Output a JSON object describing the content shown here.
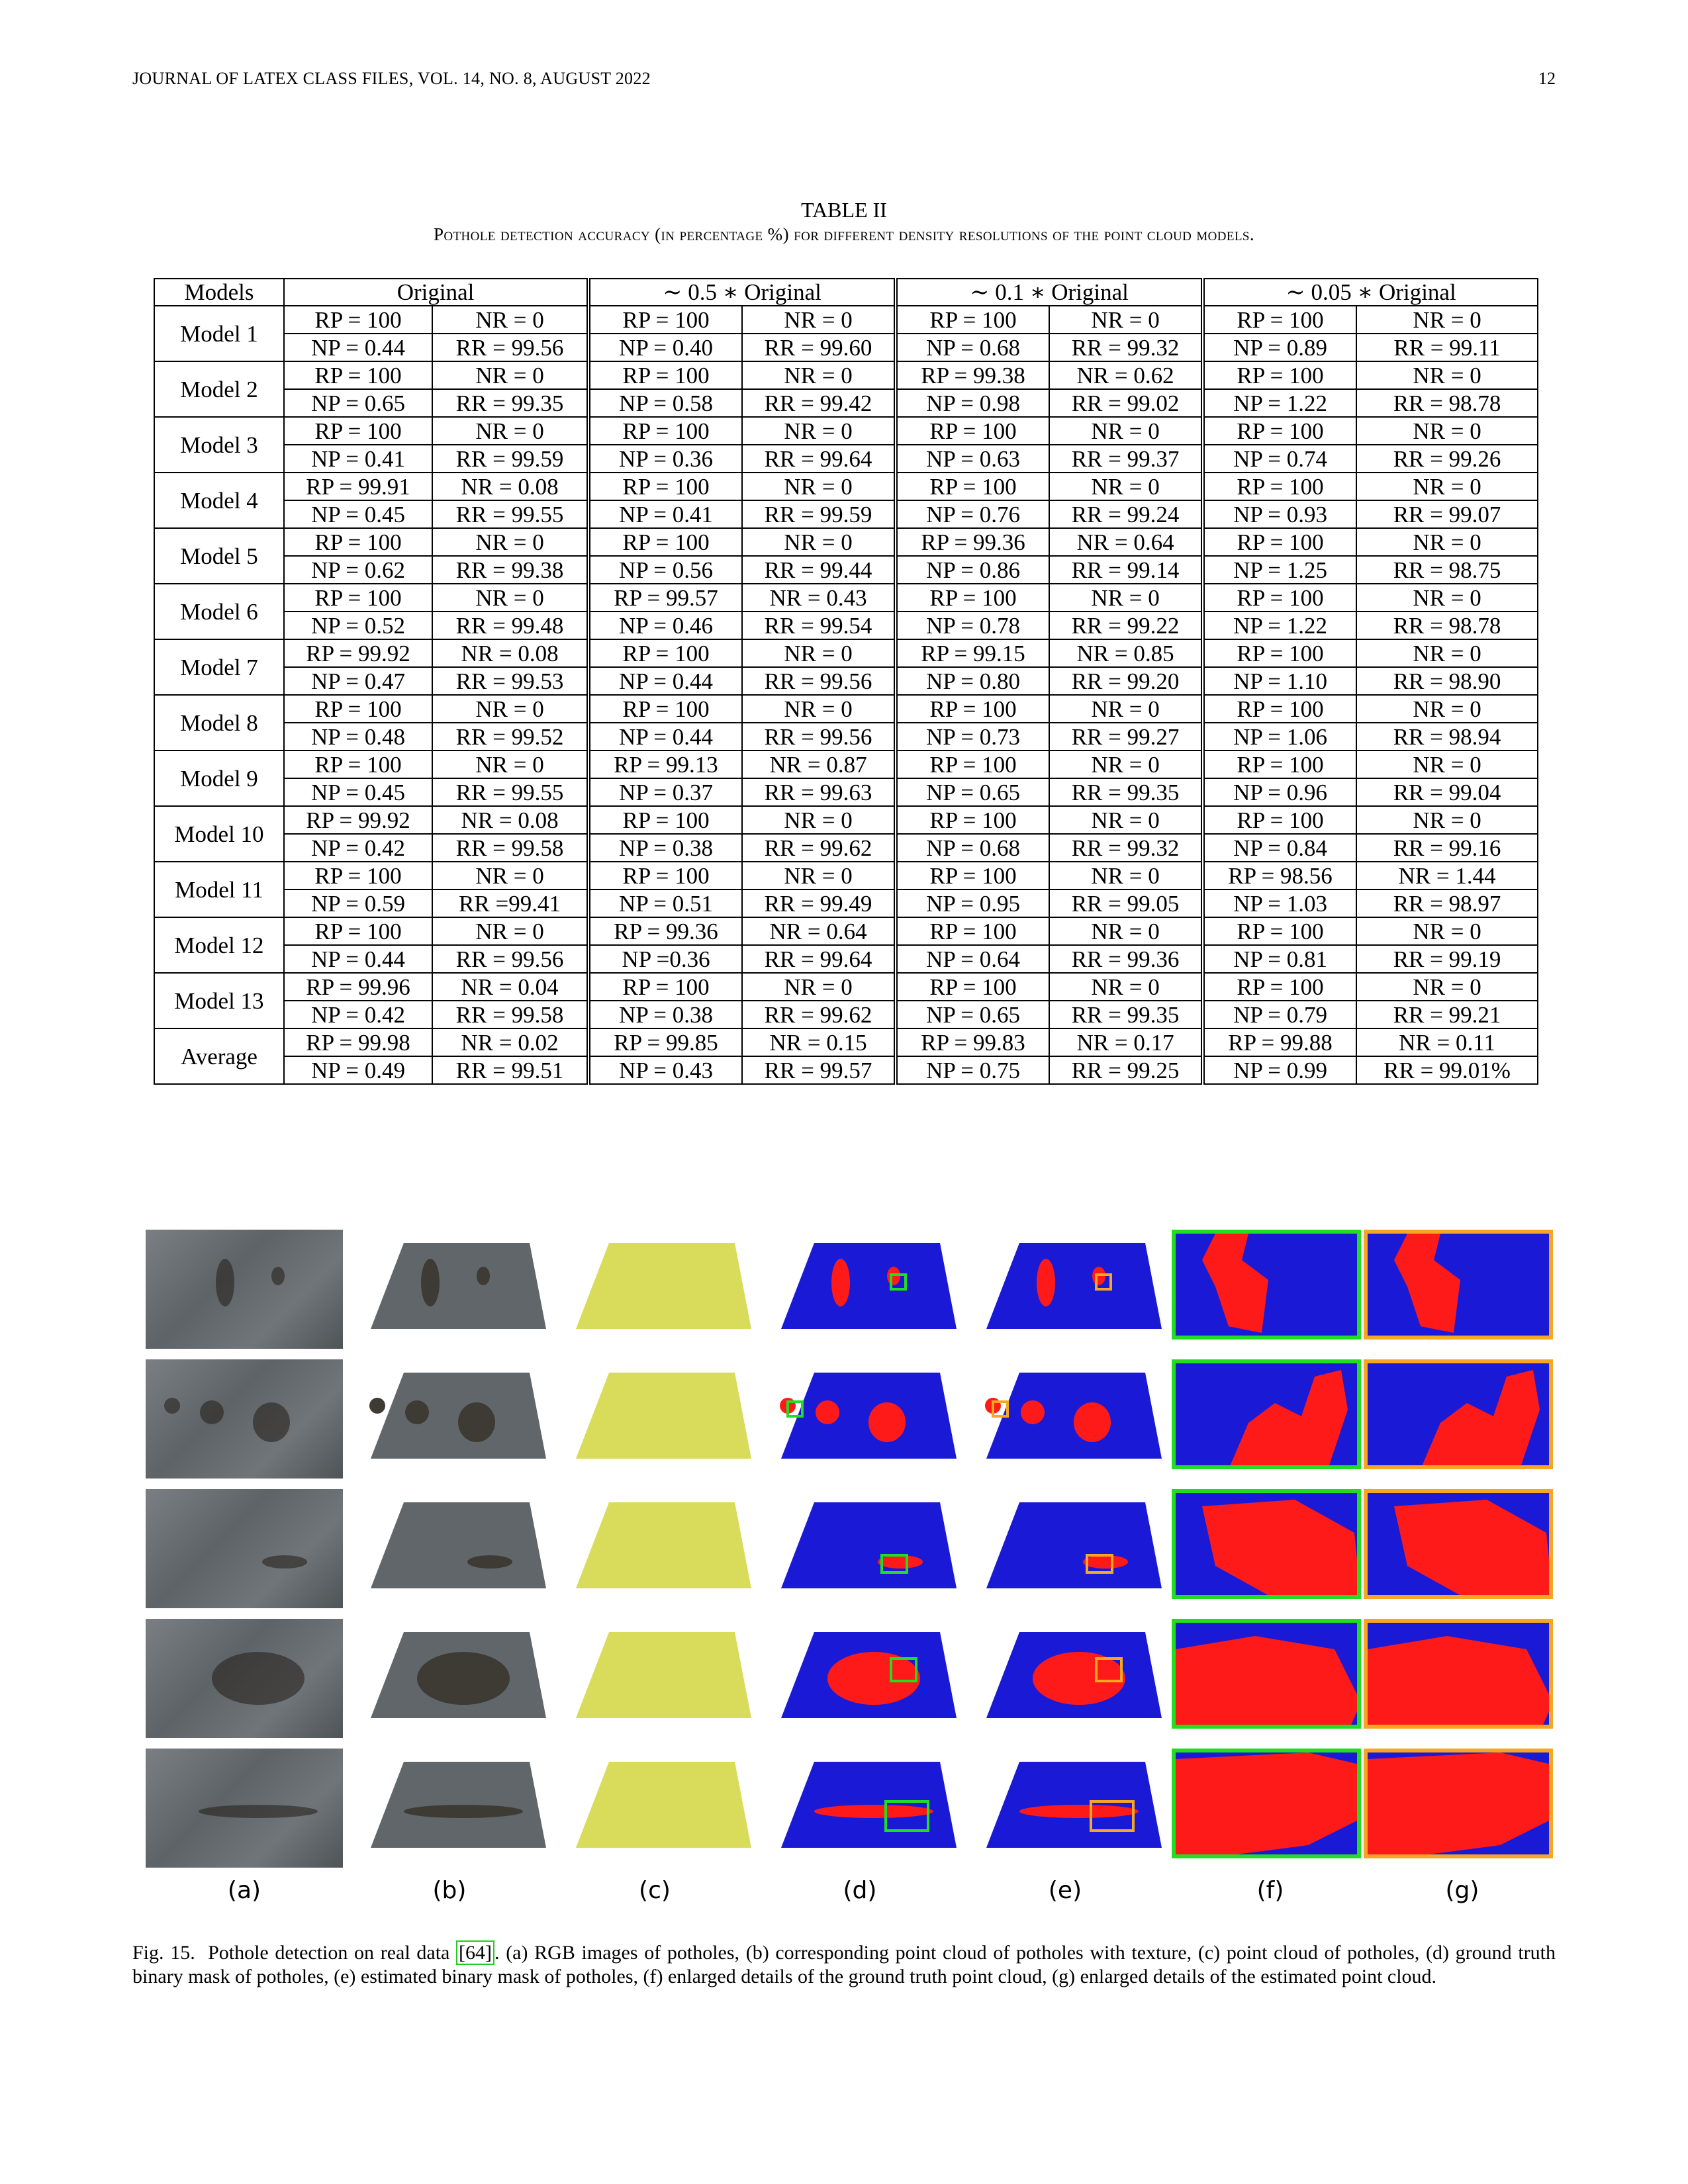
{
  "header": {
    "journal": "JOURNAL OF LATEX CLASS FILES, VOL. 14, NO. 8, AUGUST 2022",
    "page": "12"
  },
  "table": {
    "number": "TABLE II",
    "caption": "Pothole detection accuracy (in percentage %) for different density resolutions of the point cloud models.",
    "headers": [
      "Models",
      "Original",
      "∼ 0.5 ∗ Original",
      "∼ 0.1 ∗ Original",
      "∼ 0.05 ∗ Original"
    ],
    "rows": [
      {
        "model": "Model 1",
        "r1": [
          "RP = 100",
          "NR = 0",
          "RP = 100",
          "NR = 0",
          "RP = 100",
          "NR = 0",
          "RP = 100",
          "NR = 0"
        ],
        "r2": [
          "NP = 0.44",
          "RR = 99.56",
          "NP = 0.40",
          "RR = 99.60",
          "NP = 0.68",
          "RR = 99.32",
          "NP = 0.89",
          "RR = 99.11"
        ]
      },
      {
        "model": "Model 2",
        "r1": [
          "RP = 100",
          "NR = 0",
          "RP = 100",
          "NR = 0",
          "RP = 99.38",
          "NR = 0.62",
          "RP = 100",
          "NR = 0"
        ],
        "r2": [
          "NP = 0.65",
          "RR = 99.35",
          "NP = 0.58",
          "RR = 99.42",
          "NP = 0.98",
          "RR = 99.02",
          "NP = 1.22",
          "RR = 98.78"
        ]
      },
      {
        "model": "Model 3",
        "r1": [
          "RP = 100",
          "NR = 0",
          "RP = 100",
          "NR = 0",
          "RP = 100",
          "NR = 0",
          "RP = 100",
          "NR = 0"
        ],
        "r2": [
          "NP = 0.41",
          "RR = 99.59",
          "NP = 0.36",
          "RR = 99.64",
          "NP = 0.63",
          "RR = 99.37",
          "NP = 0.74",
          "RR = 99.26"
        ]
      },
      {
        "model": "Model 4",
        "r1": [
          "RP = 99.91",
          "NR = 0.08",
          "RP = 100",
          "NR = 0",
          "RP = 100",
          "NR = 0",
          "RP = 100",
          "NR = 0"
        ],
        "r2": [
          "NP = 0.45",
          "RR = 99.55",
          "NP = 0.41",
          "RR = 99.59",
          "NP = 0.76",
          "RR = 99.24",
          "NP = 0.93",
          "RR = 99.07"
        ]
      },
      {
        "model": "Model 5",
        "r1": [
          "RP = 100",
          "NR = 0",
          "RP = 100",
          "NR = 0",
          "RP = 99.36",
          "NR = 0.64",
          "RP = 100",
          "NR = 0"
        ],
        "r2": [
          "NP = 0.62",
          "RR = 99.38",
          "NP = 0.56",
          "RR = 99.44",
          "NP = 0.86",
          "RR = 99.14",
          "NP = 1.25",
          "RR = 98.75"
        ]
      },
      {
        "model": "Model 6",
        "r1": [
          "RP = 100",
          "NR = 0",
          "RP = 99.57",
          "NR = 0.43",
          "RP = 100",
          "NR = 0",
          "RP = 100",
          "NR = 0"
        ],
        "r2": [
          "NP = 0.52",
          "RR = 99.48",
          "NP = 0.46",
          "RR = 99.54",
          "NP = 0.78",
          "RR = 99.22",
          "NP = 1.22",
          "RR = 98.78"
        ]
      },
      {
        "model": "Model 7",
        "r1": [
          "RP = 99.92",
          "NR = 0.08",
          "RP = 100",
          "NR = 0",
          "RP = 99.15",
          "NR = 0.85",
          "RP = 100",
          "NR = 0"
        ],
        "r2": [
          "NP = 0.47",
          "RR = 99.53",
          "NP = 0.44",
          "RR = 99.56",
          "NP = 0.80",
          "RR = 99.20",
          "NP = 1.10",
          "RR = 98.90"
        ]
      },
      {
        "model": "Model 8",
        "r1": [
          "RP = 100",
          "NR = 0",
          "RP = 100",
          "NR = 0",
          "RP = 100",
          "NR = 0",
          "RP = 100",
          "NR = 0"
        ],
        "r2": [
          "NP = 0.48",
          "RR = 99.52",
          "NP = 0.44",
          "RR = 99.56",
          "NP = 0.73",
          "RR = 99.27",
          "NP = 1.06",
          "RR = 98.94"
        ]
      },
      {
        "model": "Model 9",
        "r1": [
          "RP = 100",
          "NR = 0",
          "RP = 99.13",
          "NR = 0.87",
          "RP = 100",
          "NR = 0",
          "RP = 100",
          "NR = 0"
        ],
        "r2": [
          "NP = 0.45",
          "RR = 99.55",
          "NP = 0.37",
          "RR = 99.63",
          "NP = 0.65",
          "RR = 99.35",
          "NP = 0.96",
          "RR = 99.04"
        ]
      },
      {
        "model": "Model 10",
        "r1": [
          "RP = 99.92",
          "NR = 0.08",
          "RP = 100",
          "NR = 0",
          "RP = 100",
          "NR = 0",
          "RP = 100",
          "NR = 0"
        ],
        "r2": [
          "NP = 0.42",
          "RR = 99.58",
          "NP = 0.38",
          "RR = 99.62",
          "NP = 0.68",
          "RR = 99.32",
          "NP = 0.84",
          "RR = 99.16"
        ]
      },
      {
        "model": "Model 11",
        "r1": [
          "RP = 100",
          "NR = 0",
          "RP = 100",
          "NR = 0",
          "RP = 100",
          "NR = 0",
          "RP = 98.56",
          "NR = 1.44"
        ],
        "r2": [
          "NP = 0.59",
          "RR =99.41",
          "NP = 0.51",
          "RR = 99.49",
          "NP = 0.95",
          "RR = 99.05",
          "NP = 1.03",
          "RR = 98.97"
        ]
      },
      {
        "model": "Model 12",
        "r1": [
          "RP = 100",
          "NR = 0",
          "RP = 99.36",
          "NR = 0.64",
          "RP = 100",
          "NR = 0",
          "RP = 100",
          "NR = 0"
        ],
        "r2": [
          "NP = 0.44",
          "RR = 99.56",
          "NP =0.36",
          "RR = 99.64",
          "NP = 0.64",
          "RR = 99.36",
          "NP = 0.81",
          "RR = 99.19"
        ]
      },
      {
        "model": "Model 13",
        "r1": [
          "RP = 99.96",
          "NR = 0.04",
          "RP = 100",
          "NR = 0",
          "RP = 100",
          "NR = 0",
          "RP = 100",
          "NR = 0"
        ],
        "r2": [
          "NP = 0.42",
          "RR = 99.58",
          "NP = 0.38",
          "RR = 99.62",
          "NP = 0.65",
          "RR = 99.35",
          "NP = 0.79",
          "RR = 99.21"
        ]
      },
      {
        "model": "Average",
        "r1": [
          "RP = 99.98",
          "NR = 0.02",
          "RP = 99.85",
          "NR = 0.15",
          "RP = 99.83",
          "NR = 0.17",
          "RP = 99.88",
          "NR = 0.11"
        ],
        "r2": [
          "NP = 0.49",
          "RR = 99.51",
          "NP = 0.43",
          "RR = 99.57",
          "NP = 0.75",
          "RR = 99.25",
          "NP = 0.99",
          "RR = 99.01%"
        ]
      }
    ]
  },
  "figure": {
    "panel_labels": [
      "(a)",
      "(b)",
      "(c)",
      "(d)",
      "(e)",
      "(f)",
      "(g)"
    ],
    "colors": {
      "pothole": "#ff1a1a",
      "road": "#1a1ad6",
      "cloud": "#d8dc5a",
      "gt_box": "#22dd22",
      "est_box": "#f5a623"
    },
    "caption": {
      "fig_no": "Fig. 15.",
      "before_ref": "Pothole detection on real data",
      "ref": "[64]",
      "after_ref": ". (a) RGB images of potholes, (b) corresponding point cloud of potholes with texture, (c) point cloud of potholes, (d) ground truth binary mask of potholes, (e) estimated binary mask of potholes, (f) enlarged details of the ground truth point cloud, (g) enlarged details of the estimated point cloud."
    }
  }
}
